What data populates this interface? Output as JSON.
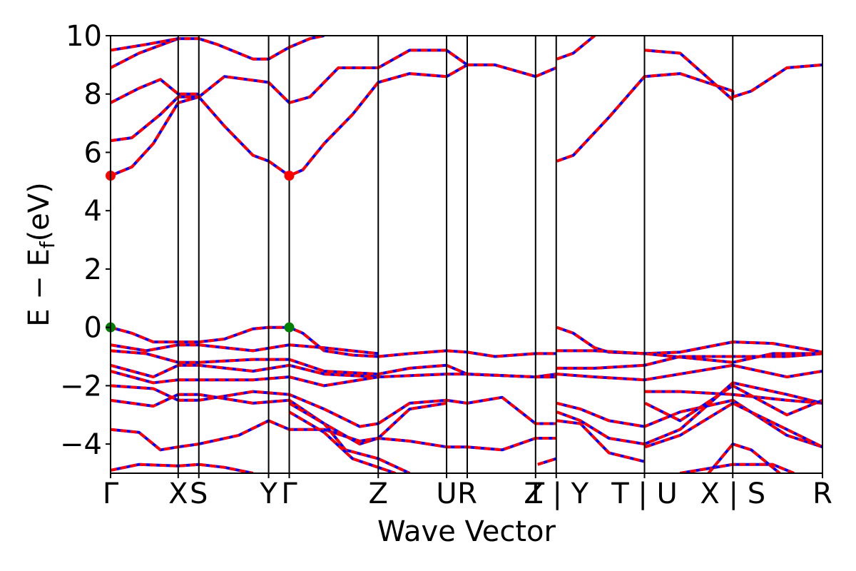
{
  "chart_data": {
    "type": "line",
    "title": "",
    "xlabel": "Wave Vector",
    "ylabel": "E − E",
    "ylabel_subscript": "f",
    "ylabel_unit": "(eV)",
    "ylim": [
      -5,
      10
    ],
    "yticks": [
      "−4",
      "−2",
      "0",
      "2",
      "4",
      "6",
      "8",
      "10"
    ],
    "ytick_values": [
      -4,
      -2,
      0,
      2,
      4,
      6,
      8,
      10
    ],
    "xlim": [
      0,
      1
    ],
    "kpoints": [
      {
        "label": "Γ",
        "x": 0.0
      },
      {
        "label": "X",
        "x": 0.095
      },
      {
        "label": "S",
        "x": 0.124
      },
      {
        "label": "Y",
        "x": 0.222
      },
      {
        "label": "Γ",
        "x": 0.251
      },
      {
        "label": "Z",
        "x": 0.376
      },
      {
        "label": "U",
        "x": 0.472
      },
      {
        "label": "R",
        "x": 0.501
      },
      {
        "label": "T",
        "x": 0.597
      },
      {
        "label": "Z | Y",
        "x": 0.626
      },
      {
        "label": "T | U",
        "x": 0.75
      },
      {
        "label": "X | S",
        "x": 0.874
      },
      {
        "label": "R",
        "x": 1.0
      }
    ],
    "series_colors": {
      "spin_up": "#0000ff",
      "spin_down": "#ff0000"
    },
    "markers": [
      {
        "kind": "cbm",
        "x": 0.0,
        "y": 5.2,
        "color": "#ff0000"
      },
      {
        "kind": "cbm",
        "x": 0.251,
        "y": 5.2,
        "color": "#ff0000"
      },
      {
        "kind": "vbm",
        "x": 0.0,
        "y": 0.0,
        "color": "#008000"
      },
      {
        "kind": "vbm",
        "x": 0.251,
        "y": 0.0,
        "color": "#008000"
      }
    ],
    "bands": [
      [
        [
          0.0,
          5.2
        ],
        [
          0.03,
          5.5
        ],
        [
          0.06,
          6.3
        ],
        [
          0.095,
          7.7
        ],
        [
          0.124,
          7.9
        ],
        [
          0.16,
          6.9
        ],
        [
          0.2,
          5.9
        ],
        [
          0.222,
          5.7
        ],
        [
          0.251,
          5.2
        ],
        [
          0.27,
          5.4
        ],
        [
          0.3,
          6.3
        ],
        [
          0.34,
          7.3
        ],
        [
          0.376,
          8.4
        ],
        [
          0.42,
          8.7
        ],
        [
          0.472,
          8.6
        ],
        [
          0.501,
          9.0
        ],
        [
          0.54,
          9.0
        ],
        [
          0.597,
          8.6
        ],
        [
          0.626,
          8.9
        ]
      ],
      [
        [
          0.0,
          6.4
        ],
        [
          0.03,
          6.5
        ],
        [
          0.07,
          7.3
        ],
        [
          0.095,
          7.9
        ],
        [
          0.124,
          7.9
        ],
        [
          0.16,
          8.6
        ],
        [
          0.222,
          8.4
        ],
        [
          0.251,
          7.7
        ],
        [
          0.28,
          7.9
        ],
        [
          0.32,
          8.9
        ],
        [
          0.376,
          8.9
        ],
        [
          0.42,
          9.5
        ],
        [
          0.472,
          9.5
        ],
        [
          0.501,
          9.0
        ]
      ],
      [
        [
          0.0,
          7.7
        ],
        [
          0.04,
          8.2
        ],
        [
          0.07,
          8.5
        ],
        [
          0.095,
          8.0
        ],
        [
          0.124,
          8.0
        ]
      ],
      [
        [
          0.0,
          8.9
        ],
        [
          0.04,
          9.4
        ],
        [
          0.095,
          9.9
        ],
        [
          0.124,
          9.9
        ],
        [
          0.15,
          9.7
        ],
        [
          0.2,
          9.2
        ],
        [
          0.222,
          9.2
        ],
        [
          0.251,
          9.6
        ],
        [
          0.28,
          9.9
        ],
        [
          0.3,
          10.0
        ]
      ],
      [
        [
          0.0,
          9.5
        ],
        [
          0.05,
          9.7
        ],
        [
          0.095,
          9.9
        ]
      ],
      [
        [
          0.627,
          5.7
        ],
        [
          0.65,
          5.9
        ],
        [
          0.7,
          7.2
        ],
        [
          0.75,
          8.6
        ],
        [
          0.8,
          8.7
        ],
        [
          0.874,
          8.1
        ],
        [
          0.874,
          7.9
        ],
        [
          0.9,
          8.1
        ],
        [
          0.95,
          8.9
        ],
        [
          1.0,
          9.0
        ]
      ],
      [
        [
          0.627,
          9.2
        ],
        [
          0.65,
          9.4
        ],
        [
          0.68,
          10.0
        ]
      ],
      [
        [
          0.751,
          9.5
        ],
        [
          0.8,
          9.4
        ],
        [
          0.874,
          7.8
        ]
      ],
      [
        [
          0.0,
          0.0
        ],
        [
          0.03,
          -0.2
        ],
        [
          0.06,
          -0.5
        ],
        [
          0.095,
          -0.5
        ],
        [
          0.124,
          -0.5
        ],
        [
          0.16,
          -0.4
        ],
        [
          0.2,
          -0.05
        ],
        [
          0.222,
          0.0
        ],
        [
          0.251,
          0.0
        ],
        [
          0.27,
          -0.2
        ],
        [
          0.3,
          -0.8
        ],
        [
          0.34,
          -0.95
        ],
        [
          0.376,
          -1.0
        ],
        [
          0.42,
          -0.9
        ],
        [
          0.472,
          -0.8
        ],
        [
          0.501,
          -0.85
        ],
        [
          0.54,
          -1.0
        ],
        [
          0.597,
          -0.9
        ],
        [
          0.626,
          -0.9
        ]
      ],
      [
        [
          0.0,
          -0.6
        ],
        [
          0.05,
          -0.8
        ],
        [
          0.095,
          -0.6
        ],
        [
          0.124,
          -0.6
        ],
        [
          0.2,
          -0.8
        ],
        [
          0.251,
          -0.6
        ],
        [
          0.3,
          -0.7
        ],
        [
          0.376,
          -0.9
        ]
      ],
      [
        [
          0.0,
          -0.8
        ],
        [
          0.05,
          -0.9
        ],
        [
          0.095,
          -1.2
        ],
        [
          0.124,
          -1.2
        ],
        [
          0.2,
          -1.1
        ],
        [
          0.251,
          -1.1
        ],
        [
          0.3,
          -1.5
        ],
        [
          0.376,
          -1.6
        ],
        [
          0.42,
          -1.4
        ],
        [
          0.472,
          -1.3
        ],
        [
          0.501,
          -1.6
        ],
        [
          0.597,
          -1.7
        ],
        [
          0.626,
          -1.6
        ]
      ],
      [
        [
          0.0,
          -1.3
        ],
        [
          0.06,
          -1.7
        ],
        [
          0.095,
          -1.3
        ],
        [
          0.124,
          -1.3
        ],
        [
          0.2,
          -1.5
        ],
        [
          0.251,
          -1.3
        ],
        [
          0.3,
          -1.6
        ],
        [
          0.376,
          -1.7
        ],
        [
          0.472,
          -1.6
        ],
        [
          0.501,
          -1.6
        ],
        [
          0.597,
          -1.7
        ],
        [
          0.626,
          -1.7
        ]
      ],
      [
        [
          0.0,
          -1.5
        ],
        [
          0.06,
          -1.9
        ],
        [
          0.095,
          -1.8
        ],
        [
          0.124,
          -1.8
        ],
        [
          0.2,
          -1.8
        ],
        [
          0.251,
          -1.7
        ],
        [
          0.3,
          -2.0
        ],
        [
          0.376,
          -1.7
        ]
      ],
      [
        [
          0.0,
          -2.0
        ],
        [
          0.06,
          -2.1
        ],
        [
          0.095,
          -2.5
        ],
        [
          0.124,
          -2.5
        ],
        [
          0.2,
          -2.2
        ],
        [
          0.251,
          -2.3
        ],
        [
          0.3,
          -2.8
        ],
        [
          0.35,
          -3.4
        ],
        [
          0.376,
          -3.3
        ],
        [
          0.42,
          -2.6
        ],
        [
          0.472,
          -2.5
        ],
        [
          0.501,
          -2.6
        ],
        [
          0.55,
          -2.4
        ],
        [
          0.597,
          -3.3
        ],
        [
          0.626,
          -3.3
        ]
      ],
      [
        [
          0.0,
          -2.5
        ],
        [
          0.06,
          -2.7
        ],
        [
          0.095,
          -2.3
        ],
        [
          0.124,
          -2.3
        ],
        [
          0.2,
          -2.6
        ],
        [
          0.251,
          -2.5
        ],
        [
          0.3,
          -3.3
        ],
        [
          0.35,
          -4.0
        ],
        [
          0.376,
          -3.8
        ],
        [
          0.42,
          -2.8
        ],
        [
          0.472,
          -2.6
        ]
      ],
      [
        [
          0.0,
          -3.5
        ],
        [
          0.04,
          -3.6
        ],
        [
          0.07,
          -4.2
        ],
        [
          0.095,
          -4.1
        ],
        [
          0.124,
          -4.0
        ],
        [
          0.18,
          -3.7
        ],
        [
          0.222,
          -3.2
        ],
        [
          0.251,
          -3.5
        ],
        [
          0.3,
          -3.5
        ],
        [
          0.35,
          -3.9
        ],
        [
          0.376,
          -3.8
        ],
        [
          0.42,
          -3.9
        ],
        [
          0.472,
          -4.1
        ],
        [
          0.501,
          -4.1
        ],
        [
          0.55,
          -4.2
        ],
        [
          0.597,
          -3.8
        ],
        [
          0.626,
          -3.8
        ]
      ],
      [
        [
          0.251,
          -2.6
        ],
        [
          0.3,
          -3.3
        ],
        [
          0.33,
          -4.2
        ],
        [
          0.376,
          -4.5
        ],
        [
          0.42,
          -5.0
        ]
      ],
      [
        [
          0.251,
          -2.9
        ],
        [
          0.3,
          -3.6
        ],
        [
          0.34,
          -4.5
        ],
        [
          0.376,
          -4.8
        ],
        [
          0.4,
          -5.0
        ]
      ],
      [
        [
          0.0,
          -4.9
        ],
        [
          0.04,
          -4.7
        ],
        [
          0.095,
          -4.75
        ],
        [
          0.124,
          -4.7
        ],
        [
          0.16,
          -4.8
        ],
        [
          0.2,
          -5.0
        ]
      ],
      [
        [
          0.6,
          -4.7
        ],
        [
          0.626,
          -4.5
        ]
      ],
      [
        [
          0.627,
          0.0
        ],
        [
          0.65,
          -0.2
        ],
        [
          0.68,
          -0.7
        ],
        [
          0.7,
          -0.85
        ],
        [
          0.75,
          -0.9
        ],
        [
          0.8,
          -0.85
        ],
        [
          0.874,
          -0.5
        ],
        [
          0.874,
          -0.5
        ],
        [
          0.93,
          -0.55
        ],
        [
          1.0,
          -0.85
        ]
      ],
      [
        [
          0.627,
          -0.8
        ],
        [
          0.68,
          -0.8
        ],
        [
          0.75,
          -0.9
        ],
        [
          0.874,
          -1.2
        ],
        [
          0.874,
          -1.2
        ],
        [
          0.93,
          -0.9
        ],
        [
          1.0,
          -0.9
        ]
      ],
      [
        [
          0.627,
          -1.4
        ],
        [
          0.68,
          -1.4
        ],
        [
          0.75,
          -1.3
        ],
        [
          0.8,
          -1.0
        ],
        [
          0.874,
          -1.0
        ],
        [
          0.874,
          -1.0
        ],
        [
          0.95,
          -1.0
        ],
        [
          1.0,
          -0.9
        ]
      ],
      [
        [
          0.627,
          -1.6
        ],
        [
          0.68,
          -1.7
        ],
        [
          0.75,
          -1.8
        ],
        [
          0.874,
          -1.3
        ],
        [
          0.874,
          -1.3
        ],
        [
          0.95,
          -1.7
        ],
        [
          1.0,
          -1.5
        ]
      ],
      [
        [
          0.627,
          -2.6
        ],
        [
          0.66,
          -2.8
        ],
        [
          0.7,
          -3.2
        ],
        [
          0.75,
          -3.4
        ],
        [
          0.8,
          -2.9
        ],
        [
          0.874,
          -2.5
        ],
        [
          0.874,
          -2.5
        ],
        [
          0.95,
          -3.7
        ],
        [
          1.0,
          -4.1
        ]
      ],
      [
        [
          0.627,
          -2.9
        ],
        [
          0.66,
          -3.2
        ],
        [
          0.7,
          -3.8
        ],
        [
          0.75,
          -4.0
        ],
        [
          0.8,
          -3.5
        ],
        [
          0.874,
          -1.9
        ],
        [
          0.874,
          -1.9
        ],
        [
          0.95,
          -2.3
        ],
        [
          1.0,
          -2.6
        ]
      ],
      [
        [
          0.627,
          -3.2
        ],
        [
          0.66,
          -3.3
        ],
        [
          0.7,
          -4.3
        ],
        [
          0.75,
          -4.6
        ]
      ],
      [
        [
          0.751,
          -2.2
        ],
        [
          0.8,
          -2.2
        ],
        [
          0.874,
          -2.3
        ],
        [
          0.874,
          -2.3
        ],
        [
          0.95,
          -2.5
        ],
        [
          1.0,
          -2.6
        ]
      ],
      [
        [
          0.751,
          -2.6
        ],
        [
          0.8,
          -3.2
        ],
        [
          0.874,
          -2.0
        ],
        [
          0.874,
          -2.0
        ],
        [
          0.95,
          -3.0
        ],
        [
          1.0,
          -2.5
        ]
      ],
      [
        [
          0.751,
          -4.1
        ],
        [
          0.8,
          -3.7
        ],
        [
          0.874,
          -2.6
        ],
        [
          0.874,
          -2.6
        ],
        [
          0.95,
          -3.5
        ],
        [
          1.0,
          -4.1
        ]
      ],
      [
        [
          0.8,
          -5.0
        ],
        [
          0.874,
          -4.7
        ],
        [
          0.874,
          -4.7
        ],
        [
          0.93,
          -4.7
        ],
        [
          0.96,
          -5.0
        ]
      ],
      [
        [
          0.84,
          -5.0
        ],
        [
          0.874,
          -4.0
        ],
        [
          0.874,
          -4.0
        ],
        [
          0.9,
          -4.2
        ],
        [
          0.94,
          -5.0
        ]
      ]
    ]
  }
}
